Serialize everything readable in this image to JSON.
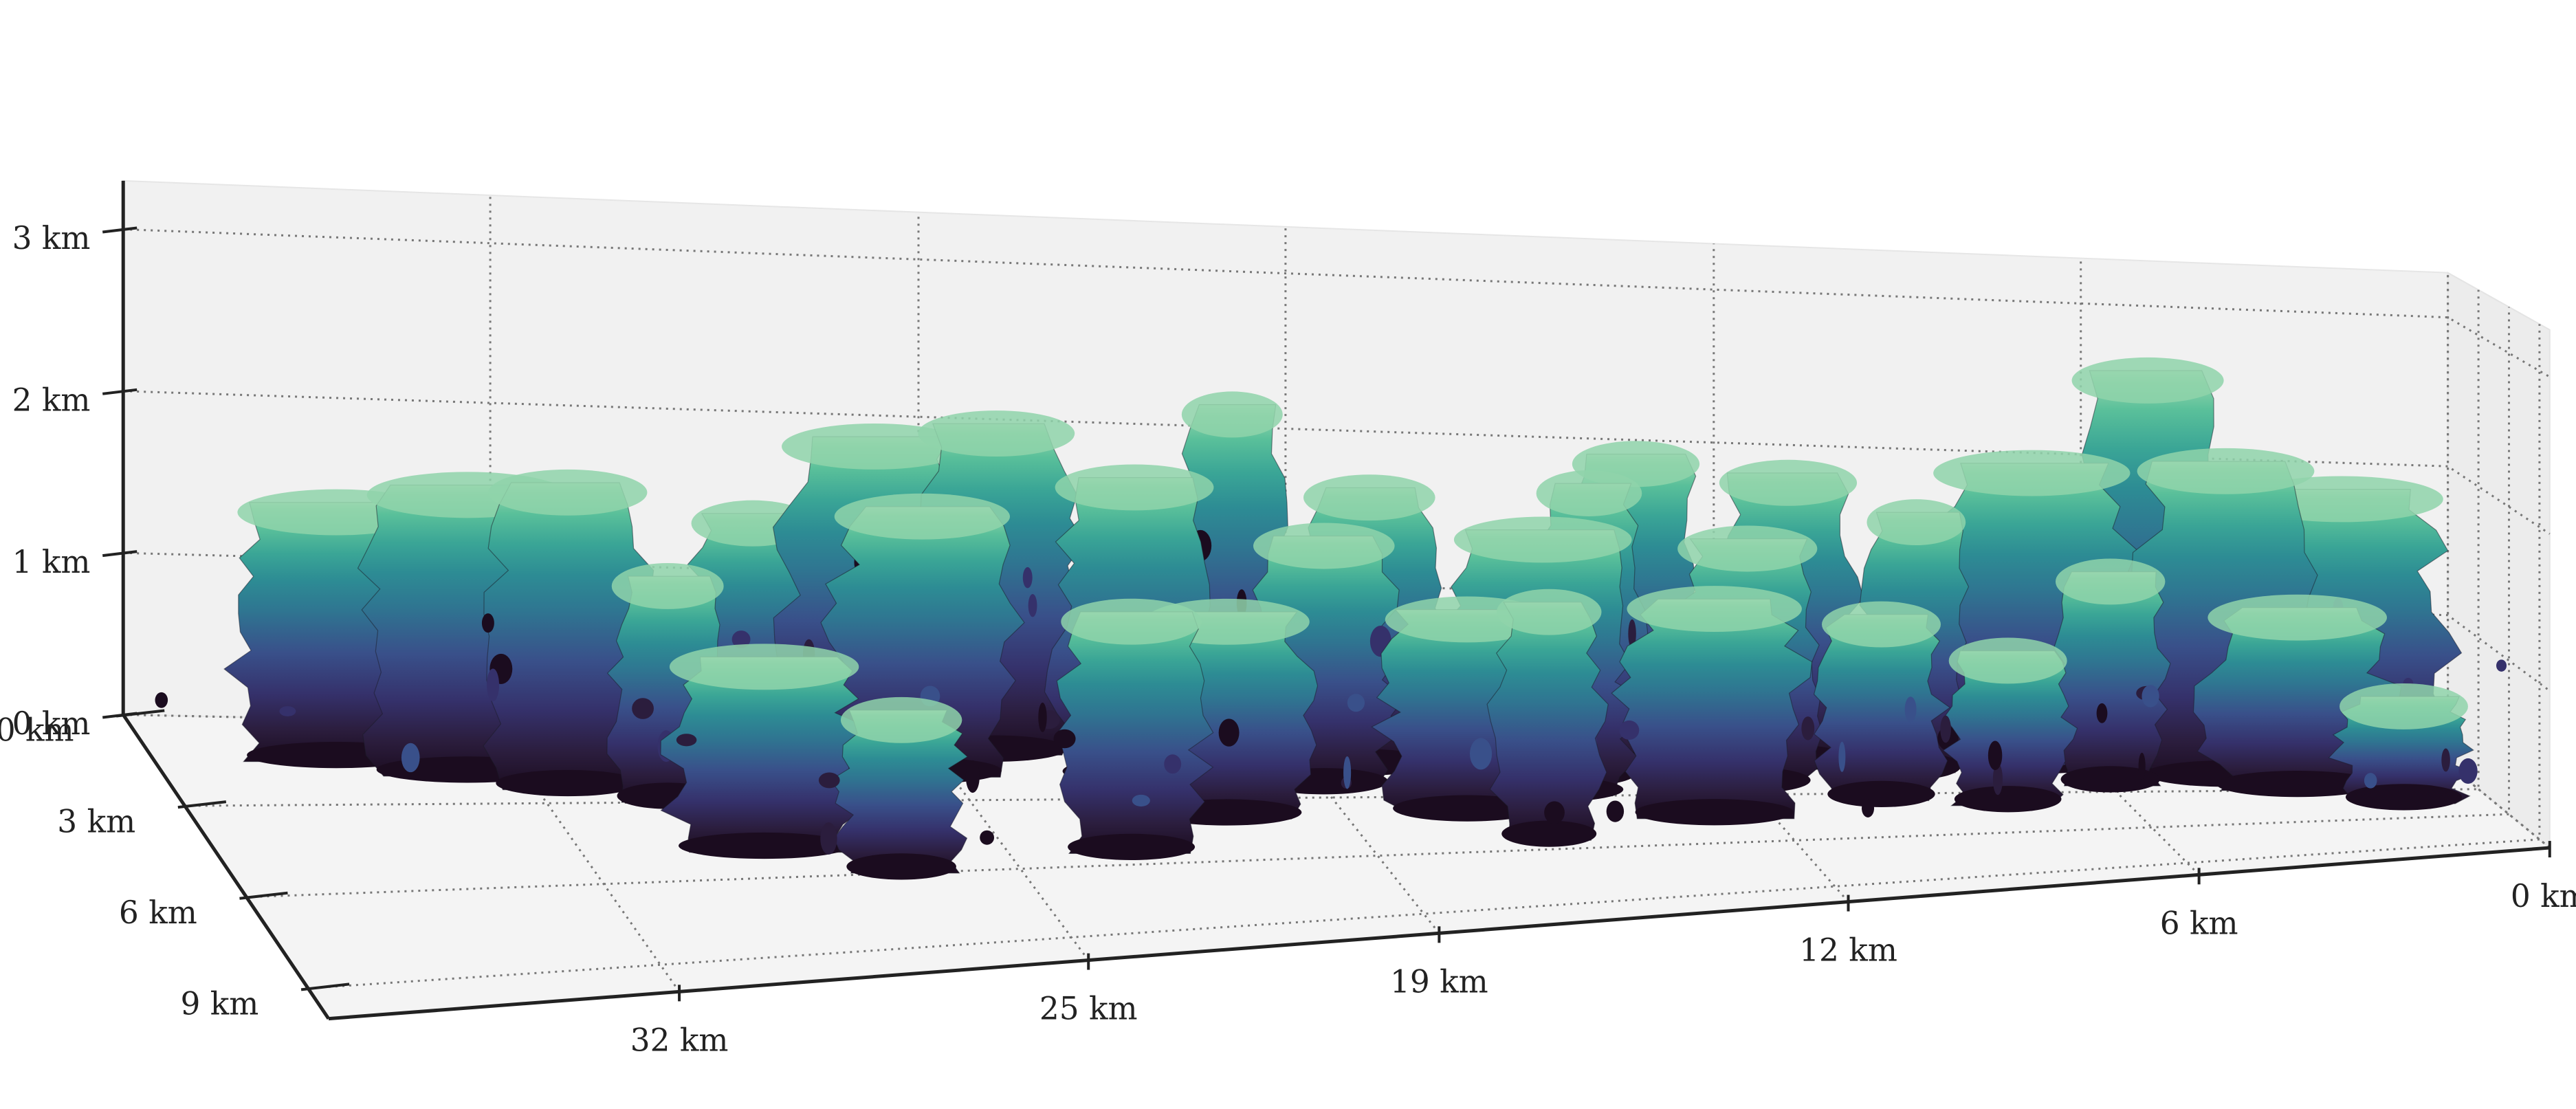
{
  "chart_data": {
    "type": "3d-surface",
    "title": "",
    "xlabel": "",
    "ylabel": "",
    "zlabel": "",
    "x_axis": {
      "ticks": [
        32,
        25,
        19,
        12,
        6,
        0
      ],
      "tick_labels": [
        "32 km",
        "25 km",
        "19 km",
        "12 km",
        "6 km",
        "0 km"
      ],
      "range": [
        0,
        38
      ],
      "direction": "decreasing-left-to-right"
    },
    "y_axis": {
      "ticks": [
        0,
        3,
        6,
        9
      ],
      "tick_labels": [
        "0 km",
        "3 km",
        "6 km",
        "9 km"
      ],
      "range": [
        0,
        10
      ]
    },
    "z_axis": {
      "ticks": [
        0,
        1,
        2,
        3
      ],
      "tick_labels": [
        "0 km",
        "1 km",
        "2 km",
        "3 km"
      ],
      "range": [
        0,
        3.3
      ]
    },
    "grid": true,
    "grid_style": "dotted",
    "colormap": {
      "name": "mako-like",
      "stops": [
        "#1b0c1f",
        "#2b1d3d",
        "#35316b",
        "#39508a",
        "#2f7591",
        "#2d8c94",
        "#3aa596",
        "#5ac09a",
        "#8fd3aa",
        "#c6e6c6"
      ]
    },
    "description_values": {
      "clouds": [
        {
          "x": 35.0,
          "y": 1.5,
          "top": 1.6
        },
        {
          "x": 33.0,
          "y": 2.0,
          "top": 1.8
        },
        {
          "x": 31.5,
          "y": 2.5,
          "top": 1.9
        },
        {
          "x": 30.0,
          "y": 3.0,
          "top": 1.4
        },
        {
          "x": 29.0,
          "y": 5.0,
          "top": 1.2
        },
        {
          "x": 28.0,
          "y": 1.0,
          "top": 1.5
        },
        {
          "x": 27.0,
          "y": 6.0,
          "top": 1.0
        },
        {
          "x": 26.0,
          "y": 1.0,
          "top": 2.0
        },
        {
          "x": 25.5,
          "y": 2.0,
          "top": 1.7
        },
        {
          "x": 24.0,
          "y": 1.0,
          "top": 2.1
        },
        {
          "x": 23.0,
          "y": 5.5,
          "top": 1.5
        },
        {
          "x": 22.0,
          "y": 2.0,
          "top": 1.9
        },
        {
          "x": 21.0,
          "y": 4.0,
          "top": 1.3
        },
        {
          "x": 20.0,
          "y": 0.5,
          "top": 2.2
        },
        {
          "x": 19.0,
          "y": 2.5,
          "top": 1.6
        },
        {
          "x": 18.0,
          "y": 1.5,
          "top": 1.8
        },
        {
          "x": 17.0,
          "y": 4.0,
          "top": 1.3
        },
        {
          "x": 16.0,
          "y": 5.5,
          "top": 1.5
        },
        {
          "x": 15.5,
          "y": 3.0,
          "top": 1.7
        },
        {
          "x": 14.5,
          "y": 2.0,
          "top": 1.9
        },
        {
          "x": 13.5,
          "y": 1.0,
          "top": 2.0
        },
        {
          "x": 13.0,
          "y": 4.5,
          "top": 1.4
        },
        {
          "x": 12.0,
          "y": 2.5,
          "top": 1.6
        },
        {
          "x": 11.0,
          "y": 1.0,
          "top": 1.9
        },
        {
          "x": 10.0,
          "y": 3.5,
          "top": 1.2
        },
        {
          "x": 9.0,
          "y": 1.5,
          "top": 1.7
        },
        {
          "x": 8.0,
          "y": 4.0,
          "top": 1.0
        },
        {
          "x": 7.0,
          "y": 1.0,
          "top": 2.0
        },
        {
          "x": 6.0,
          "y": 2.5,
          "top": 1.4
        },
        {
          "x": 5.0,
          "y": 0.5,
          "top": 2.6
        },
        {
          "x": 4.0,
          "y": 2.0,
          "top": 2.1
        },
        {
          "x": 3.0,
          "y": 3.0,
          "top": 1.2
        },
        {
          "x": 2.0,
          "y": 1.5,
          "top": 1.9
        },
        {
          "x": 1.5,
          "y": 4.5,
          "top": 0.7
        }
      ]
    }
  }
}
